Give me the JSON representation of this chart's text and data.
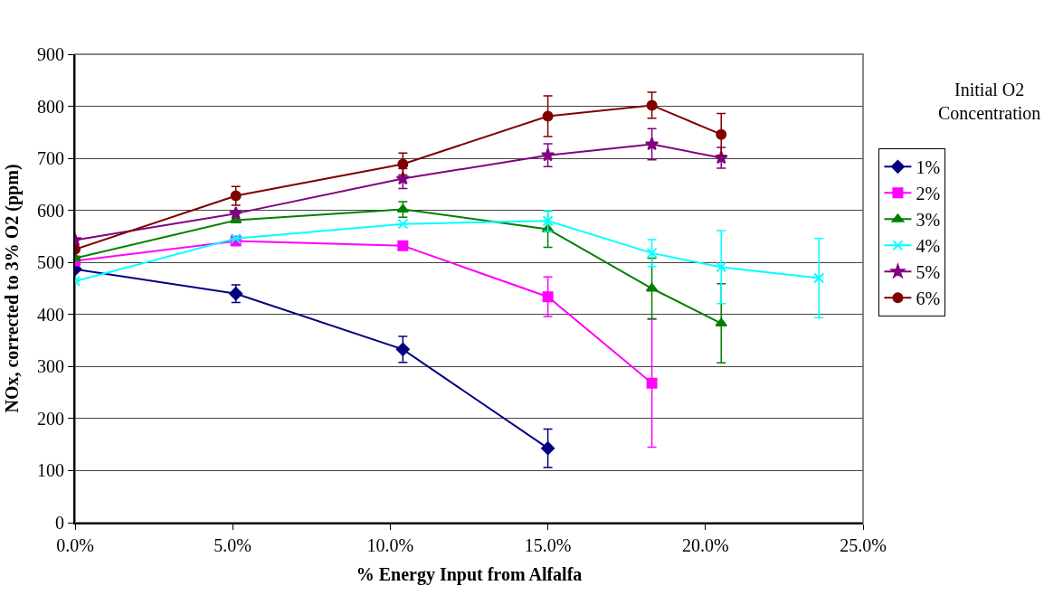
{
  "chart_data": {
    "type": "line",
    "xlabel": "% Energy Input from Alfalfa",
    "ylabel": "NOx, corrected to 3% O2 (ppm)",
    "legend_title": "Initial O2 Concentration",
    "xlim": [
      0,
      25
    ],
    "xticks": [
      {
        "value": 0,
        "label": "0.0%"
      },
      {
        "value": 5,
        "label": "5.0%"
      },
      {
        "value": 10,
        "label": "10.0%"
      },
      {
        "value": 15,
        "label": "15.0%"
      },
      {
        "value": 20,
        "label": "20.0%"
      },
      {
        "value": 25,
        "label": "25.0%"
      }
    ],
    "ylim": [
      0,
      900
    ],
    "yticks": [
      0,
      100,
      200,
      300,
      400,
      500,
      600,
      700,
      800,
      900
    ],
    "grid": "y",
    "legend": "right",
    "series": [
      {
        "name": "1%",
        "color": "#000080",
        "marker": "diamond",
        "x": [
          0,
          5.1,
          10.4,
          15.0
        ],
        "values": [
          487,
          440,
          333,
          143
        ],
        "errors": [
          null,
          17,
          25,
          37
        ]
      },
      {
        "name": "2%",
        "color": "#ff00ff",
        "marker": "square",
        "x": [
          0,
          5.1,
          10.4,
          15.0,
          18.3
        ],
        "values": [
          503,
          541,
          532,
          434,
          268
        ],
        "errors": [
          null,
          null,
          null,
          38,
          123
        ]
      },
      {
        "name": "3%",
        "color": "#008000",
        "marker": "triangle",
        "x": [
          0,
          5.1,
          10.4,
          15.0,
          18.3,
          20.5
        ],
        "values": [
          508,
          581,
          602,
          564,
          450,
          383
        ],
        "errors": [
          null,
          null,
          15,
          35,
          58,
          76
        ]
      },
      {
        "name": "4%",
        "color": "#00ffff",
        "marker": "cross",
        "x": [
          0,
          5.1,
          10.4,
          15.0,
          18.3,
          20.5,
          23.6
        ],
        "values": [
          464,
          546,
          574,
          580,
          518,
          491,
          470
        ],
        "errors": [
          null,
          null,
          null,
          20,
          26,
          70,
          76
        ]
      },
      {
        "name": "5%",
        "color": "#800080",
        "marker": "star",
        "x": [
          0,
          5.1,
          10.4,
          15.0,
          18.3,
          20.5
        ],
        "values": [
          543,
          594,
          661,
          706,
          727,
          701
        ],
        "errors": [
          null,
          null,
          19,
          22,
          30,
          20
        ]
      },
      {
        "name": "6%",
        "color": "#800000",
        "marker": "circle",
        "x": [
          0,
          5.1,
          10.4,
          15.0,
          18.3,
          20.5
        ],
        "values": [
          525,
          628,
          689,
          781,
          802,
          746
        ],
        "errors": [
          null,
          18,
          21,
          39,
          25,
          40
        ]
      }
    ]
  }
}
